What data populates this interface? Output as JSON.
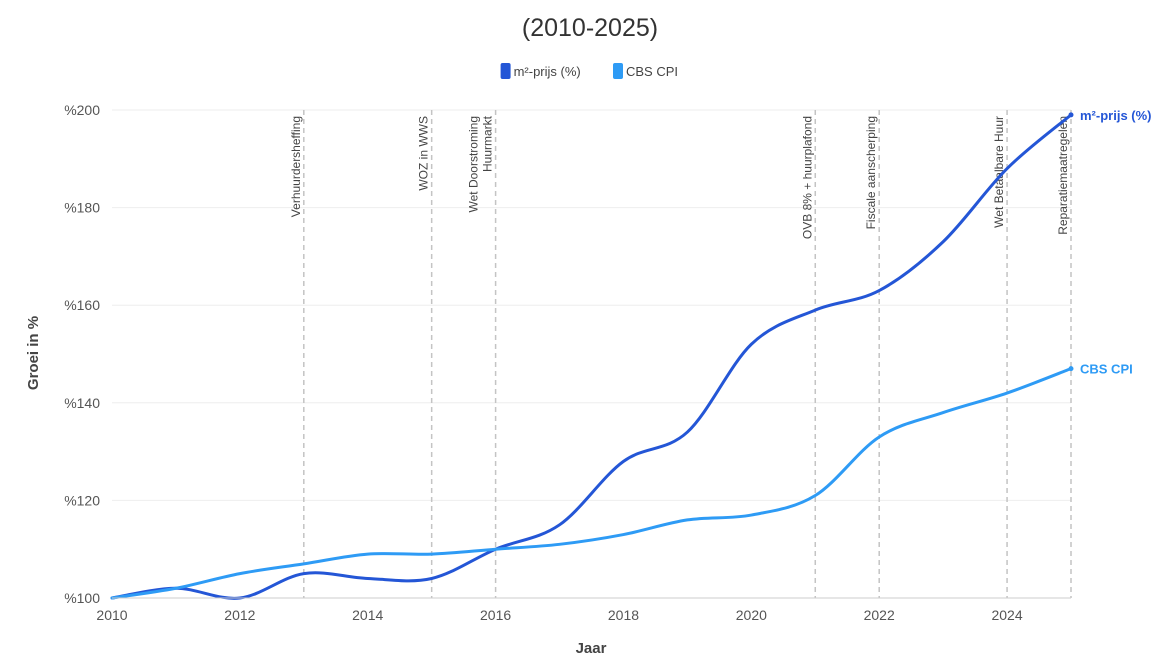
{
  "chart_data": {
    "type": "line",
    "title": "",
    "subtitle": "(2010-2025)",
    "xlabel": "Jaar",
    "ylabel": "Groei in %",
    "xlim": [
      2010,
      2025
    ],
    "ylim": [
      100,
      200
    ],
    "x_ticks": [
      2010,
      2012,
      2014,
      2016,
      2018,
      2020,
      2022,
      2024
    ],
    "y_ticks": [
      "%100",
      "%120",
      "%140",
      "%160",
      "%180",
      "%200"
    ],
    "y_tick_values": [
      100,
      120,
      140,
      160,
      180,
      200
    ],
    "grid": true,
    "legend_position": "top-center",
    "series": [
      {
        "name": "m²-prijs (%)",
        "end_label": "m²-prijs (%)",
        "color": "#2456d6",
        "x": [
          2010,
          2011,
          2012,
          2013,
          2014,
          2015,
          2016,
          2017,
          2018,
          2019,
          2020,
          2021,
          2022,
          2023,
          2024,
          2025
        ],
        "values": [
          100,
          102,
          100,
          105,
          104,
          104,
          110,
          115,
          128,
          134,
          152,
          159,
          163,
          173,
          188,
          199
        ]
      },
      {
        "name": "CBS CPI",
        "end_label": "CBS CPI",
        "color": "#2e9bf5",
        "x": [
          2010,
          2011,
          2012,
          2013,
          2014,
          2015,
          2016,
          2017,
          2018,
          2019,
          2020,
          2021,
          2022,
          2023,
          2024,
          2025
        ],
        "values": [
          100,
          102,
          105,
          107,
          109,
          109,
          110,
          111,
          113,
          116,
          117,
          121,
          133,
          138,
          142,
          147
        ]
      }
    ],
    "events": [
      {
        "x": 2013,
        "label": "Verhuurdersheffing"
      },
      {
        "x": 2015,
        "label": "WOZ in WWS"
      },
      {
        "x": 2016,
        "label": "Wet Doorstroming Huurmarkt"
      },
      {
        "x": 2021,
        "label": "OVB 8% + huurplafond"
      },
      {
        "x": 2022,
        "label": "Fiscale aanscherping"
      },
      {
        "x": 2024,
        "label": "Wet Betaalbare Huur"
      },
      {
        "x": 2025,
        "label": "Reparatiemaatregelen"
      }
    ]
  }
}
